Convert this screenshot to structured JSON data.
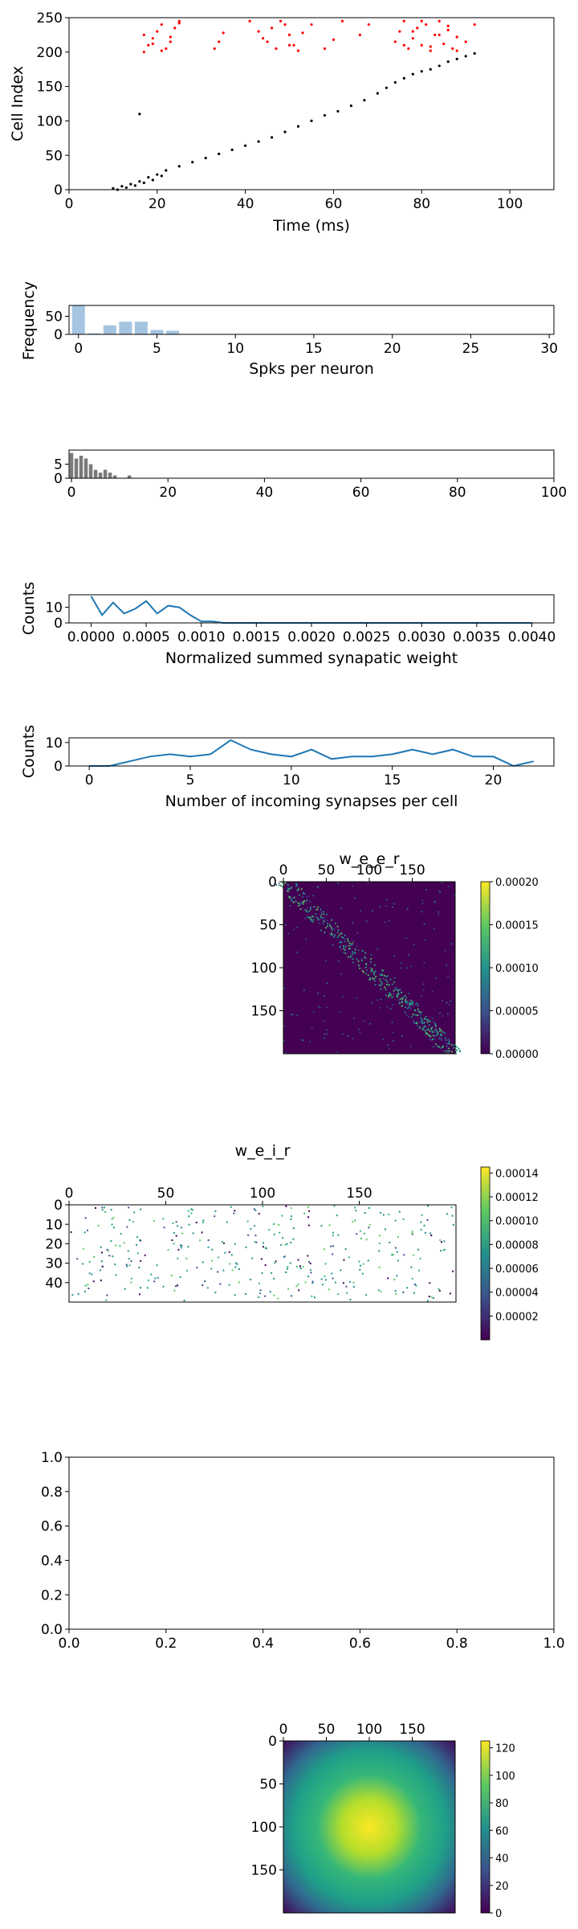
{
  "figure": {
    "background": "#ffffff"
  },
  "chart_data": [
    {
      "id": "raster",
      "type": "scatter",
      "xlabel": "Time (ms)",
      "ylabel": "Cell Index",
      "xlim": [
        0,
        110
      ],
      "ylim": [
        0,
        250
      ],
      "xticks": [
        0,
        20,
        40,
        60,
        80,
        100
      ],
      "yticks": [
        0,
        50,
        100,
        150,
        200,
        250
      ],
      "series": [
        {
          "color": "#000000",
          "x": [
            10,
            12,
            14,
            16,
            18,
            20,
            22,
            25,
            28,
            31,
            34,
            37,
            40,
            43,
            46,
            49,
            52,
            55,
            58,
            61,
            64,
            67,
            70,
            72,
            74,
            76,
            78,
            80,
            82,
            84,
            86,
            88,
            90,
            92,
            11,
            13,
            15,
            17,
            19,
            21,
            16
          ],
          "y": [
            2,
            5,
            8,
            12,
            18,
            22,
            28,
            34,
            40,
            46,
            52,
            58,
            64,
            70,
            76,
            84,
            92,
            100,
            108,
            114,
            122,
            130,
            140,
            148,
            156,
            162,
            168,
            172,
            175,
            180,
            186,
            190,
            194,
            198,
            0,
            3,
            6,
            10,
            14,
            20,
            110
          ]
        },
        {
          "color": "#ff0000",
          "x": [
            17,
            18,
            19,
            20,
            21,
            22,
            23,
            24,
            25,
            17,
            19,
            21,
            23,
            25,
            33,
            34,
            35,
            41,
            43,
            45,
            47,
            49,
            50,
            51,
            52,
            44,
            46,
            48,
            50,
            53,
            55,
            58,
            60,
            62,
            66,
            68,
            74,
            75,
            76,
            77,
            78,
            79,
            80,
            81,
            82,
            83,
            84,
            85,
            86,
            87,
            88,
            90,
            92,
            76,
            78,
            80,
            82,
            84,
            86,
            88
          ],
          "y": [
            200,
            210,
            220,
            230,
            240,
            205,
            215,
            235,
            245,
            225,
            212,
            202,
            222,
            242,
            205,
            215,
            228,
            245,
            230,
            215,
            205,
            240,
            225,
            210,
            202,
            220,
            235,
            245,
            210,
            228,
            240,
            205,
            218,
            245,
            225,
            240,
            215,
            230,
            245,
            205,
            220,
            235,
            210,
            240,
            202,
            225,
            245,
            212,
            232,
            205,
            222,
            215,
            240,
            210,
            230,
            245,
            208,
            225,
            238,
            202
          ]
        }
      ]
    },
    {
      "id": "spk_hist",
      "type": "bar",
      "xlabel": "Spks per neuron",
      "ylabel": "Frequency",
      "xlim": [
        -0.6,
        30.3
      ],
      "ylim": [
        0,
        80
      ],
      "xticks": [
        0,
        5,
        10,
        15,
        20,
        25,
        30
      ],
      "yticks": [
        0,
        50
      ],
      "color": "#a4c4e0",
      "x": [
        0,
        1,
        2,
        3,
        4,
        5,
        6
      ],
      "values": [
        80,
        3,
        25,
        35,
        35,
        12,
        10
      ]
    },
    {
      "id": "gray_hist",
      "type": "bar",
      "xlabel": "",
      "ylabel": "",
      "xlim": [
        -0.5,
        100
      ],
      "ylim": [
        0,
        10
      ],
      "xticks": [
        0,
        20,
        40,
        60,
        80,
        100
      ],
      "yticks": [
        0,
        5
      ],
      "color": "#7a7a7a",
      "x": [
        0,
        1,
        2,
        3,
        4,
        5,
        6,
        7,
        8,
        9,
        10,
        11,
        12
      ],
      "values": [
        9,
        7,
        8,
        7,
        5,
        3,
        2,
        3,
        2,
        1,
        0,
        0,
        1
      ]
    },
    {
      "id": "weight_line",
      "type": "line",
      "xlabel": "Normalized summed synapatic weight",
      "ylabel": "Counts",
      "xlim": [
        -0.0002,
        0.0042
      ],
      "ylim": [
        0,
        18
      ],
      "xticks": [
        0.0,
        0.0005,
        0.001,
        0.0015,
        0.002,
        0.0025,
        0.003,
        0.0035,
        0.004
      ],
      "xtick_labels": [
        "0.0000",
        "0.0005",
        "0.0010",
        "0.0015",
        "0.0020",
        "0.0025",
        "0.0030",
        "0.0035",
        "0.0040"
      ],
      "yticks": [
        0,
        10
      ],
      "color": "#1f77b4",
      "x": [
        0.0,
        0.0001,
        0.0002,
        0.0003,
        0.0004,
        0.0005,
        0.0006,
        0.0007,
        0.0008,
        0.0009,
        0.001,
        0.0011,
        0.0012,
        0.0015,
        0.002,
        0.0025,
        0.003,
        0.0035,
        0.004
      ],
      "y": [
        17,
        5,
        13,
        6,
        9,
        14,
        6,
        11,
        10,
        5,
        1,
        1,
        0,
        0,
        0,
        0,
        0,
        0,
        0
      ]
    },
    {
      "id": "incoming_line",
      "type": "line",
      "xlabel": "Number of incoming synapses per cell",
      "ylabel": "Counts",
      "xlim": [
        -1,
        23
      ],
      "ylim": [
        0,
        12
      ],
      "xticks": [
        0,
        5,
        10,
        15,
        20
      ],
      "yticks": [
        0,
        10
      ],
      "color": "#1f77b4",
      "x": [
        0,
        1,
        2,
        3,
        4,
        5,
        6,
        7,
        8,
        9,
        10,
        11,
        12,
        13,
        14,
        15,
        16,
        17,
        18,
        19,
        20,
        21,
        22
      ],
      "y": [
        0,
        0,
        2,
        4,
        5,
        4,
        5,
        11,
        7,
        5,
        4,
        7,
        3,
        4,
        4,
        5,
        7,
        5,
        7,
        4,
        4,
        0,
        2
      ]
    },
    {
      "id": "w_e_e_r",
      "type": "heatmap",
      "title": "w_e_e_r",
      "xticks": [
        0,
        50,
        100,
        150
      ],
      "yticks": [
        0,
        50,
        100,
        150
      ],
      "colorbar_ticks": [
        "0.00000",
        "0.00005",
        "0.00010",
        "0.00015",
        "0.00020"
      ]
    },
    {
      "id": "w_e_i_r",
      "type": "heatmap",
      "title": "w_e_i_r",
      "xticks": [
        0,
        50,
        100,
        150
      ],
      "yticks": [
        0,
        10,
        20,
        30,
        40
      ],
      "colorbar_ticks": [
        "0.00002",
        "0.00004",
        "0.00006",
        "0.00008",
        "0.00010",
        "0.00012",
        "0.00014"
      ]
    },
    {
      "id": "empty_axes",
      "type": "line",
      "xlim": [
        0,
        1
      ],
      "ylim": [
        0,
        1
      ],
      "xticks": [
        "0.0",
        "0.2",
        "0.4",
        "0.6",
        "0.8",
        "1.0"
      ],
      "yticks": [
        "0.0",
        "0.2",
        "0.4",
        "0.6",
        "0.8",
        "1.0"
      ]
    },
    {
      "id": "gaussian_map",
      "type": "heatmap",
      "xticks": [
        0,
        50,
        100,
        150
      ],
      "yticks": [
        0,
        50,
        100,
        150
      ],
      "colorbar_ticks": [
        "0",
        "20",
        "40",
        "60",
        "80",
        "100",
        "120"
      ]
    }
  ]
}
